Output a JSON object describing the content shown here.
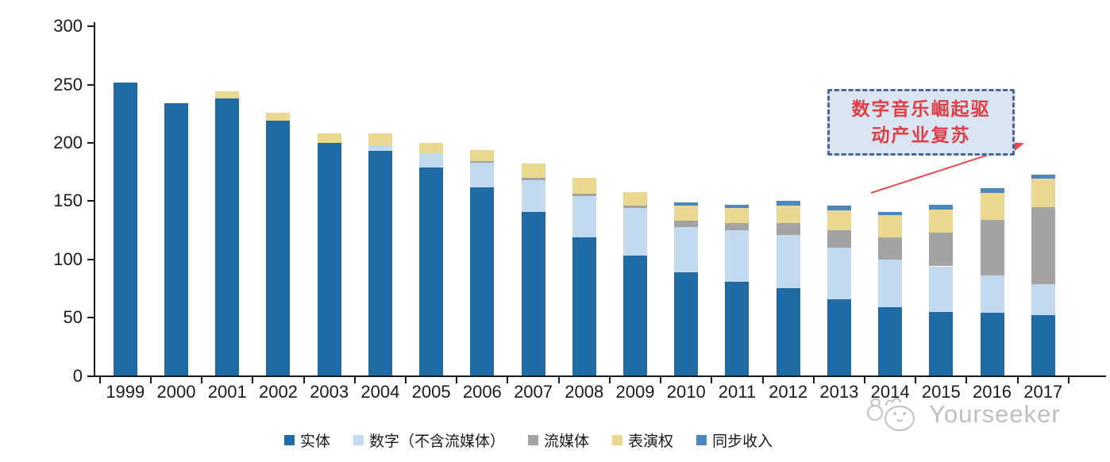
{
  "chart_data": {
    "type": "stacked-bar",
    "categories": [
      "1999",
      "2000",
      "2001",
      "2002",
      "2003",
      "2004",
      "2005",
      "2006",
      "2007",
      "2008",
      "2009",
      "2010",
      "2011",
      "2012",
      "2013",
      "2014",
      "2015",
      "2016",
      "2017"
    ],
    "series": [
      {
        "key": "physical",
        "name": "实体",
        "color": "#1f6ba6",
        "values": [
          252,
          234,
          238,
          219,
          200,
          193,
          179,
          162,
          141,
          119,
          103,
          89,
          81,
          75,
          66,
          59,
          55,
          54,
          52
        ]
      },
      {
        "key": "digital-ex-streaming",
        "name": "数字（不含流媒体）",
        "color": "#c2daef",
        "values": [
          0,
          0,
          0,
          0,
          0,
          5,
          12,
          21,
          27,
          35,
          41,
          39,
          44,
          46,
          44,
          41,
          39,
          32,
          27
        ]
      },
      {
        "key": "streaming",
        "name": "流媒体",
        "color": "#a3a3a3",
        "values": [
          0,
          0,
          0,
          0,
          0,
          0,
          0,
          1,
          2,
          2,
          2,
          5,
          6,
          10,
          15,
          19,
          29,
          48,
          66
        ]
      },
      {
        "key": "performance-rights",
        "name": "表演权",
        "color": "#ead88f",
        "values": [
          0,
          0,
          6,
          7,
          8,
          10,
          9,
          10,
          12,
          14,
          12,
          13,
          13,
          15,
          17,
          19,
          20,
          23,
          24
        ]
      },
      {
        "key": "sync-revenue",
        "name": "同步收入",
        "color": "#4c86be",
        "values": [
          0,
          0,
          0,
          0,
          0,
          0,
          0,
          0,
          0,
          0,
          0,
          3,
          3,
          4,
          4,
          3,
          4,
          4,
          4
        ]
      }
    ],
    "ylim": [
      0,
      300
    ],
    "yticks": [
      0,
      50,
      100,
      150,
      200,
      250,
      300
    ],
    "grid": false,
    "legend_position": "bottom"
  },
  "annotation": {
    "lines": [
      "数字音乐崛起驱",
      "动产业复苏"
    ],
    "box_fill": "#d9e5f3",
    "border_color": "#4a66a0",
    "text_color": "#e03e44",
    "arrow_color": "#e74c4c"
  },
  "watermark": {
    "text": "Yourseeker",
    "color": "#b3b3b3"
  },
  "colors": {
    "axis": "#1a1a1a"
  }
}
